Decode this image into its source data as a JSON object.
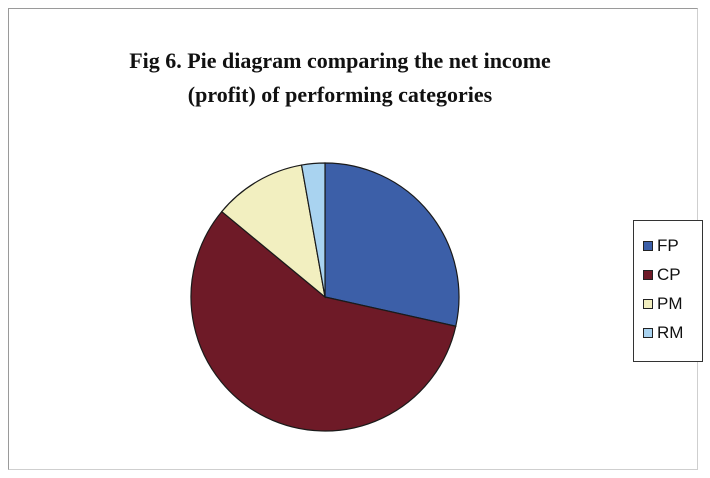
{
  "chart_data": {
    "type": "pie",
    "title": "Fig 6. Pie diagram comparing the net income\n(profit) of performing categories",
    "categories": [
      "FP",
      "CP",
      "PM",
      "RM"
    ],
    "values": [
      28.5,
      57.5,
      11.2,
      2.8
    ],
    "colors": [
      "#3c5fa8",
      "#6e1a27",
      "#f2efc0",
      "#a9d3f0"
    ],
    "start_angle_deg": 0,
    "direction": "clockwise",
    "legend_position": "right"
  }
}
